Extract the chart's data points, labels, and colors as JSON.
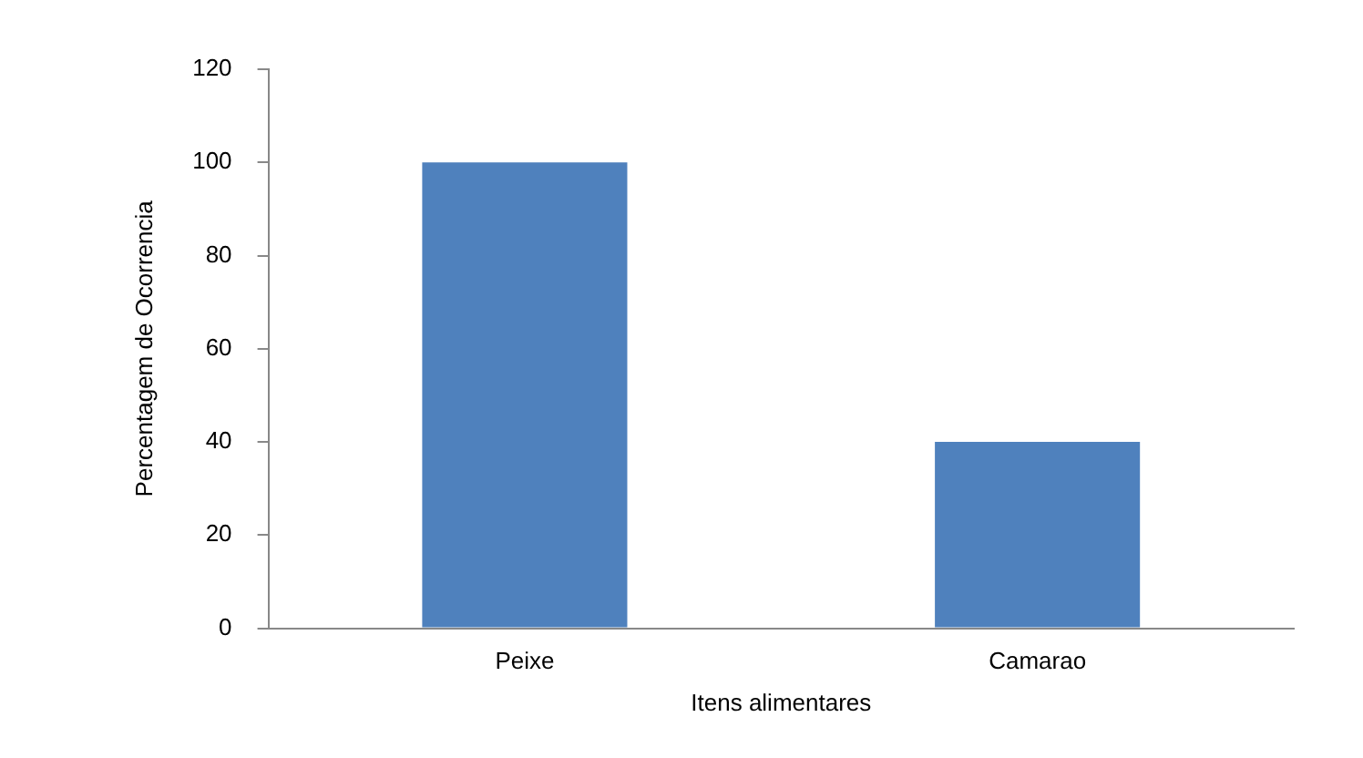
{
  "chart_data": {
    "type": "bar",
    "xlabel": "Itens alimentares",
    "ylabel": "Percentagem de Ocorrencia",
    "categories": [
      "Peixe",
      "Camarao"
    ],
    "values": [
      100,
      40
    ],
    "color": "#4f81bd",
    "ylim": [
      0,
      120
    ],
    "yticks": [
      0,
      20,
      40,
      60,
      80,
      100,
      120
    ],
    "grid": false,
    "legend": false
  }
}
